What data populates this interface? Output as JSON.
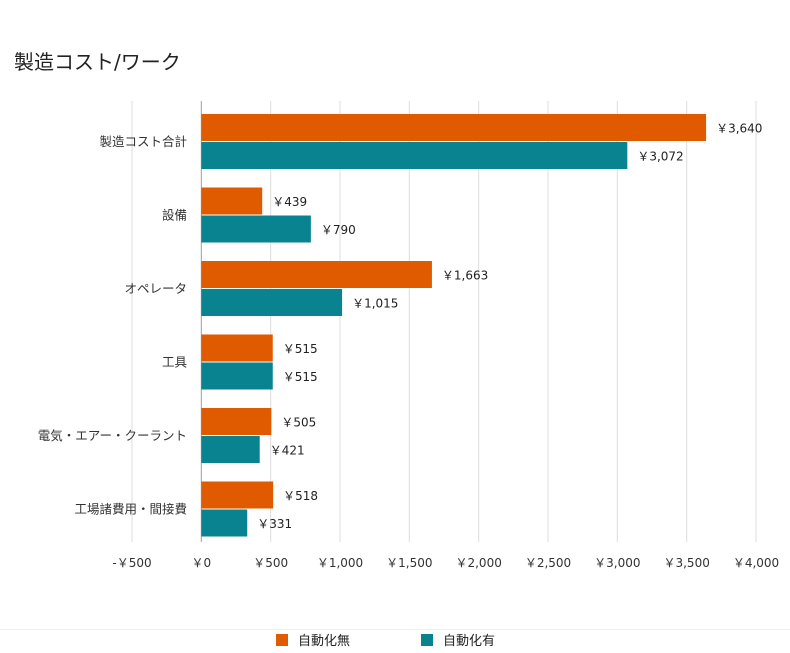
{
  "chart_data": {
    "type": "bar",
    "orientation": "horizontal",
    "title": "製造コスト/ワーク",
    "categories": [
      "製造コスト合計",
      "設備",
      "オペレータ",
      "工具",
      "電気・エアー・クーラント",
      "工場諸費用・間接費"
    ],
    "series": [
      {
        "name": "自動化無",
        "color": "#E05A00",
        "values": [
          3640,
          439,
          1663,
          515,
          505,
          518
        ],
        "labels": [
          "￥3,640",
          "￥439",
          "￥1,663",
          "￥515",
          "￥505",
          "￥518"
        ]
      },
      {
        "name": "自動化有",
        "color": "#08838F",
        "values": [
          3072,
          790,
          1015,
          515,
          421,
          331
        ],
        "labels": [
          "￥3,072",
          "￥790",
          "￥1,015",
          "￥515",
          "￥421",
          "￥331"
        ]
      }
    ],
    "xlim": [
      -500,
      4000
    ],
    "x_ticks": [
      -500,
      0,
      500,
      1000,
      1500,
      2000,
      2500,
      3000,
      3500,
      4000
    ],
    "x_tick_labels": [
      "-￥500",
      "￥0",
      "￥500",
      "￥1,000",
      "￥1,500",
      "￥2,000",
      "￥2,500",
      "￥3,000",
      "￥3,500",
      "￥4,000"
    ],
    "grid": true,
    "legend": "bottom"
  }
}
